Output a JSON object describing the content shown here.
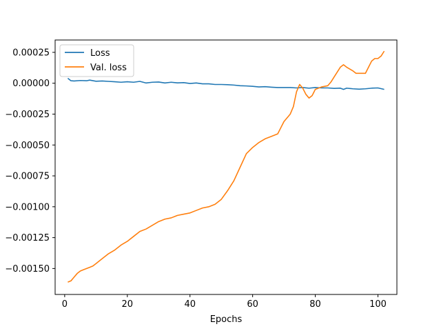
{
  "chart_data": {
    "type": "line",
    "xlabel": "Epochs",
    "ylabel": "",
    "xlim": [
      -3.05,
      106.05
    ],
    "ylim": [
      -0.00171,
      0.00035
    ],
    "xticks": [
      0,
      20,
      40,
      60,
      80,
      100
    ],
    "xtick_labels": [
      "0",
      "20",
      "40",
      "60",
      "80",
      "100"
    ],
    "yticks": [
      0.00025,
      0.0,
      -0.00025,
      -0.0005,
      -0.00075,
      -0.001,
      -0.00125,
      -0.0015
    ],
    "ytick_labels": [
      "0.00025",
      "0.00000",
      "−0.00025",
      "−0.00050",
      "−0.00075",
      "−0.00100",
      "−0.00125",
      "−0.00150"
    ],
    "grid": false,
    "legend_position": "upper-left",
    "series": [
      {
        "name": "Loss",
        "color": "#1f77b4",
        "points": [
          [
            1,
            4e-05
          ],
          [
            2,
            2e-05
          ],
          [
            3,
            1.8e-05
          ],
          [
            5,
            2.2e-05
          ],
          [
            7,
            2e-05
          ],
          [
            8,
            2.5e-05
          ],
          [
            10,
            1.6e-05
          ],
          [
            12,
            1.8e-05
          ],
          [
            14,
            1.5e-05
          ],
          [
            16,
            1.2e-05
          ],
          [
            18,
            8e-06
          ],
          [
            20,
            1.2e-05
          ],
          [
            22,
            8e-06
          ],
          [
            24,
            1.5e-05
          ],
          [
            26,
            2e-06
          ],
          [
            28,
            8e-06
          ],
          [
            30,
            1e-05
          ],
          [
            32,
            2e-06
          ],
          [
            34,
            8e-06
          ],
          [
            36,
            3e-06
          ],
          [
            38,
            5e-06
          ],
          [
            40,
            -2e-06
          ],
          [
            42,
            2e-06
          ],
          [
            44,
            -5e-06
          ],
          [
            46,
            -5e-06
          ],
          [
            48,
            -1e-05
          ],
          [
            50,
            -1e-05
          ],
          [
            52,
            -1.2e-05
          ],
          [
            54,
            -1.5e-05
          ],
          [
            56,
            -2e-05
          ],
          [
            58,
            -2.2e-05
          ],
          [
            60,
            -2.5e-05
          ],
          [
            62,
            -3e-05
          ],
          [
            64,
            -2.8e-05
          ],
          [
            66,
            -3.2e-05
          ],
          [
            68,
            -3.5e-05
          ],
          [
            70,
            -3.5e-05
          ],
          [
            72,
            -3.5e-05
          ],
          [
            74,
            -3.8e-05
          ],
          [
            76,
            -3.5e-05
          ],
          [
            78,
            -4e-05
          ],
          [
            80,
            -3.5e-05
          ],
          [
            82,
            -3.8e-05
          ],
          [
            84,
            -3.8e-05
          ],
          [
            86,
            -4.2e-05
          ],
          [
            88,
            -4e-05
          ],
          [
            89,
            -5e-05
          ],
          [
            90,
            -4e-05
          ],
          [
            92,
            -4.5e-05
          ],
          [
            94,
            -4.8e-05
          ],
          [
            96,
            -4.5e-05
          ],
          [
            98,
            -4e-05
          ],
          [
            100,
            -3.8e-05
          ],
          [
            102,
            -5e-05
          ]
        ]
      },
      {
        "name": "Val. loss",
        "color": "#ff7f0e",
        "points": [
          [
            1,
            -0.00161
          ],
          [
            2,
            -0.0016
          ],
          [
            3,
            -0.00157
          ],
          [
            4,
            -0.00154
          ],
          [
            5,
            -0.00152
          ],
          [
            6,
            -0.00151
          ],
          [
            7,
            -0.0015
          ],
          [
            8,
            -0.00149
          ],
          [
            9,
            -0.00148
          ],
          [
            10,
            -0.00146
          ],
          [
            12,
            -0.00142
          ],
          [
            14,
            -0.00138
          ],
          [
            16,
            -0.00135
          ],
          [
            18,
            -0.00131
          ],
          [
            20,
            -0.00128
          ],
          [
            22,
            -0.00124
          ],
          [
            24,
            -0.0012
          ],
          [
            26,
            -0.00118
          ],
          [
            28,
            -0.00115
          ],
          [
            30,
            -0.00112
          ],
          [
            32,
            -0.0011
          ],
          [
            34,
            -0.00109
          ],
          [
            36,
            -0.00107
          ],
          [
            38,
            -0.00106
          ],
          [
            40,
            -0.00105
          ],
          [
            42,
            -0.00103
          ],
          [
            44,
            -0.00101
          ],
          [
            46,
            -0.001
          ],
          [
            48,
            -0.00098
          ],
          [
            50,
            -0.00094
          ],
          [
            52,
            -0.00087
          ],
          [
            54,
            -0.00079
          ],
          [
            56,
            -0.00068
          ],
          [
            58,
            -0.00057
          ],
          [
            60,
            -0.00052
          ],
          [
            62,
            -0.00048
          ],
          [
            64,
            -0.00045
          ],
          [
            66,
            -0.00043
          ],
          [
            68,
            -0.00041
          ],
          [
            69,
            -0.00036
          ],
          [
            70,
            -0.00031
          ],
          [
            72,
            -0.00025
          ],
          [
            73,
            -0.00019
          ],
          [
            74,
            -7e-05
          ],
          [
            75,
            -1e-05
          ],
          [
            76,
            -4e-05
          ],
          [
            77,
            -9e-05
          ],
          [
            78,
            -0.00012
          ],
          [
            79,
            -0.0001
          ],
          [
            80,
            -5e-05
          ],
          [
            82,
            -3e-05
          ],
          [
            84,
            -2e-05
          ],
          [
            85,
            1e-05
          ],
          [
            86,
            5e-05
          ],
          [
            87,
            9e-05
          ],
          [
            88,
            0.00013
          ],
          [
            89,
            0.00015
          ],
          [
            90,
            0.00013
          ],
          [
            92,
            0.0001
          ],
          [
            93,
            8e-05
          ],
          [
            95,
            8e-05
          ],
          [
            96,
            8e-05
          ],
          [
            97,
            0.00013
          ],
          [
            98,
            0.00018
          ],
          [
            99,
            0.0002
          ],
          [
            100,
            0.0002
          ],
          [
            101,
            0.00022
          ],
          [
            102,
            0.00026
          ]
        ]
      }
    ]
  }
}
